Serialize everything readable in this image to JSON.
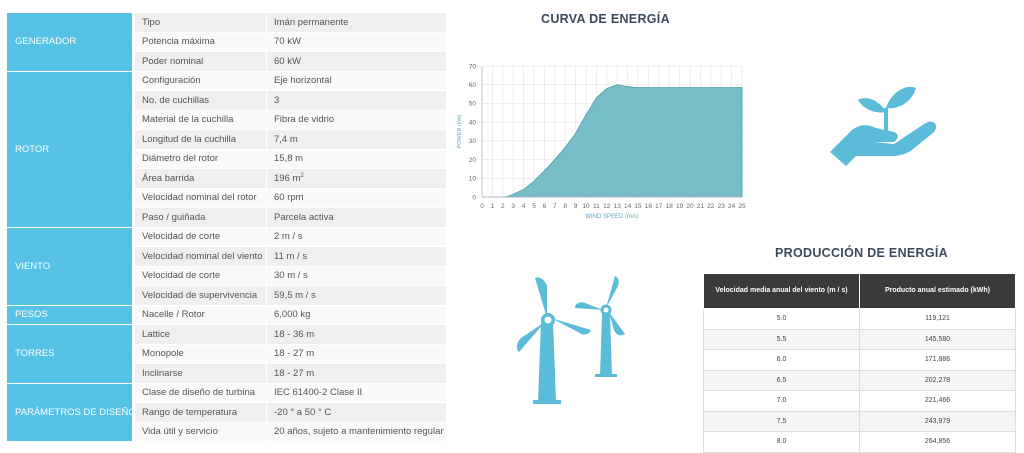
{
  "specs": [
    {
      "group": "GENERADOR",
      "rows": [
        [
          "Tipo",
          "Imán permanente"
        ],
        [
          "Potencia máxima",
          "70 kW"
        ],
        [
          "Poder nominal",
          "60 kW"
        ]
      ]
    },
    {
      "group": "ROTOR",
      "rows": [
        [
          "Configuración",
          "Eje horizontal"
        ],
        [
          "No. de cuchillas",
          "3"
        ],
        [
          "Material de la cuchilla",
          "Fibra de vidrio"
        ],
        [
          "Longitud de la cuchilla",
          "7,4 m"
        ],
        [
          "Diámetro del rotor",
          "15,8 m"
        ],
        [
          "Área barrida",
          "196 m"
        ],
        [
          "Velocidad nominal del rotor",
          "60 rpm"
        ],
        [
          "Paso / guiñada",
          "Parcela activa"
        ]
      ]
    },
    {
      "group": "VIENTO",
      "rows": [
        [
          "Velocidad de corte",
          "2 m / s"
        ],
        [
          "Velocidad nominal del viento",
          "11 m / s"
        ],
        [
          "Velocidad de corte",
          "30 m / s"
        ],
        [
          "Velocidad de supervivencia",
          "59,5 m / s"
        ]
      ]
    },
    {
      "group": "PESOS",
      "rows": [
        [
          "Nacelle / Rotor",
          "6,000 kg"
        ]
      ]
    },
    {
      "group": "TORRES",
      "rows": [
        [
          "Lattice",
          "18 - 36 m"
        ],
        [
          "Monopole",
          "18 - 27 m"
        ],
        [
          "Inclinarse",
          "18 - 27 m"
        ]
      ]
    },
    {
      "group": "PARÁMETROS DE DISEÑO",
      "rows": [
        [
          "Clase de diseño de turbina",
          "IEC 61400-2 Clase II"
        ],
        [
          "Rango de temperatura",
          "-20 ° a 50 ° C"
        ],
        [
          "Vida útil y servicio",
          "20 años, sujeto a mantenimiento regular"
        ]
      ]
    }
  ],
  "area_superscript": "2",
  "chart_data": {
    "type": "area",
    "title": "CURVA DE ENERGÍA",
    "xlabel": "WIND SPEED (m/s)",
    "ylabel": "POWER (kW)",
    "xlim": [
      0,
      25
    ],
    "ylim": [
      0,
      70
    ],
    "xticks": [
      0,
      1,
      2,
      3,
      4,
      5,
      6,
      7,
      8,
      9,
      10,
      11,
      12,
      13,
      14,
      15,
      16,
      17,
      18,
      19,
      20,
      21,
      22,
      23,
      24,
      25
    ],
    "yticks": [
      0,
      10,
      20,
      30,
      40,
      50,
      60,
      70
    ],
    "grid": true,
    "x": [
      0,
      1,
      2,
      2.5,
      3,
      4,
      5,
      6,
      7,
      8,
      9,
      10,
      11,
      12,
      13,
      14,
      15,
      16,
      17,
      18,
      19,
      20,
      21,
      22,
      23,
      24,
      25
    ],
    "y": [
      0,
      0,
      0,
      0.3,
      1.5,
      4,
      8.5,
      14,
      20,
      26.5,
      34,
      44,
      53,
      58,
      60,
      59,
      58.5,
      58.5,
      58.5,
      58.5,
      58.5,
      58.5,
      58.5,
      58.5,
      58.5,
      58.5,
      58.5
    ],
    "fill_color": "#5fb3c0"
  },
  "production": {
    "title": "PRODUCCIÓN DE ENERGÍA",
    "headers": [
      "Velocidad media anual del viento (m / s)",
      "Producto anual estimado (kWh)"
    ],
    "rows": [
      [
        "5.0",
        "119,121"
      ],
      [
        "5.5",
        "145,580"
      ],
      [
        "6.0",
        "171,886"
      ],
      [
        "6.5",
        "202,278"
      ],
      [
        "7.0",
        "221,466"
      ],
      [
        "7.5",
        "243,979"
      ],
      [
        "8.0",
        "264,856"
      ]
    ]
  },
  "icons": {
    "hand_plant": "hand-plant-icon",
    "turbines": "wind-turbines-icon",
    "color": "#5bbcd9"
  }
}
